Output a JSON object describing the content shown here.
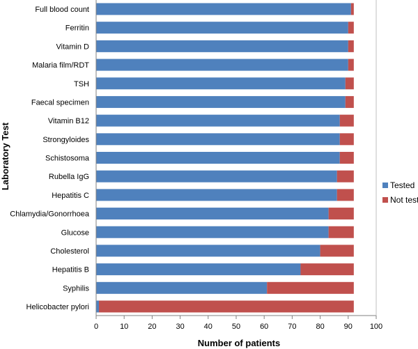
{
  "chart_data": {
    "type": "bar",
    "orientation": "horizontal",
    "stacked": true,
    "title": "",
    "xlabel": "Number of patients",
    "ylabel": "Laboratory Test",
    "xlim": [
      0,
      100
    ],
    "xticks": [
      0,
      10,
      20,
      30,
      40,
      50,
      60,
      70,
      80,
      90,
      100
    ],
    "grid": false,
    "legend_position": "right",
    "categories": [
      "Full blood count",
      "Ferritin",
      "Vitamin D",
      "Malaria film/RDT",
      "TSH",
      "Faecal specimen",
      "Vitamin B12",
      "Strongyloides",
      "Schistosoma",
      "Rubella IgG",
      "Hepatitis C",
      "Chlamydia/Gonorrhoea",
      "Glucose",
      "Cholesterol",
      "Hepatitis B",
      "Syphilis",
      "Helicobacter pylori"
    ],
    "series": [
      {
        "name": "Tested",
        "color": "#4f81bd",
        "values": [
          91,
          90,
          90,
          90,
          89,
          89,
          87,
          87,
          87,
          86,
          86,
          83,
          83,
          80,
          73,
          61,
          1
        ]
      },
      {
        "name": "Not tested",
        "color": "#c0504d",
        "values": [
          1,
          2,
          2,
          2,
          3,
          3,
          5,
          5,
          5,
          6,
          6,
          9,
          9,
          12,
          19,
          31,
          91
        ]
      }
    ]
  }
}
